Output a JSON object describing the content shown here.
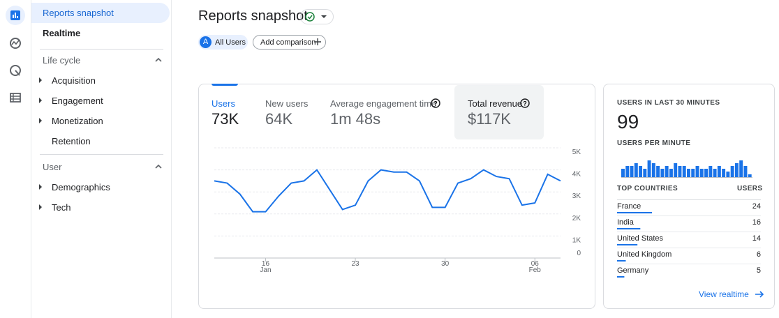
{
  "nav": {
    "items": [
      "Reports snapshot",
      "Realtime"
    ],
    "sections": [
      {
        "title": "Life cycle",
        "items": [
          "Acquisition",
          "Engagement",
          "Monetization",
          "Retention"
        ]
      },
      {
        "title": "User",
        "items": [
          "Demographics",
          "Tech"
        ]
      }
    ]
  },
  "header": {
    "title": "Reports snapshot",
    "segment_avatar": "A",
    "segment": "All Users",
    "add_comparison": "Add comparison"
  },
  "metrics": [
    {
      "label": "Users",
      "value": "73K"
    },
    {
      "label": "New users",
      "value": "64K"
    },
    {
      "label": "Average engagement time",
      "value": "1m 48s"
    },
    {
      "label": "Total revenue",
      "value": "$117K"
    }
  ],
  "chart_data": [
    {
      "type": "line",
      "categories": [
        null,
        null,
        null,
        null,
        "16 Jan",
        null,
        null,
        null,
        null,
        null,
        null,
        "23",
        null,
        null,
        null,
        null,
        null,
        null,
        "30",
        null,
        null,
        null,
        null,
        null,
        null,
        "06 Feb",
        null,
        null
      ],
      "series": [
        {
          "name": "Users",
          "color": "#1a73e8",
          "values": [
            3500,
            3400,
            2900,
            2100,
            2100,
            2800,
            3400,
            3500,
            4000,
            3100,
            2200,
            2400,
            3500,
            4000,
            3900,
            3900,
            3500,
            2300,
            2300,
            3400,
            3600,
            4000,
            3700,
            3600,
            2400,
            2500,
            3800,
            3500
          ]
        }
      ],
      "ylim": [
        0,
        5000
      ],
      "yticks": [
        0,
        {
          "value": 1000,
          "label": "1K"
        },
        {
          "value": 2000,
          "label": "2K"
        },
        {
          "value": 3000,
          "label": "3K"
        },
        {
          "value": 4000,
          "label": "4K"
        },
        {
          "value": 5000,
          "label": "5K"
        }
      ],
      "grid": true
    },
    {
      "type": "bar",
      "title": "USERS PER MINUTE",
      "color": "#1a73e8",
      "values": [
        3,
        4,
        4,
        5,
        4,
        3,
        6,
        5,
        4,
        3,
        4,
        3,
        5,
        4,
        4,
        3,
        3,
        4,
        3,
        3,
        4,
        3,
        4,
        3,
        2,
        4,
        5,
        6,
        4,
        1
      ]
    }
  ],
  "realtime": {
    "title": "USERS IN LAST 30 MINUTES",
    "value": "99",
    "table": {
      "headers": [
        "TOP COUNTRIES",
        "USERS"
      ],
      "rows": [
        [
          "France",
          24
        ],
        [
          "India",
          16
        ],
        [
          "United States",
          14
        ],
        [
          "United Kingdom",
          6
        ],
        [
          "Germany",
          5
        ]
      ]
    },
    "link": "View realtime"
  }
}
